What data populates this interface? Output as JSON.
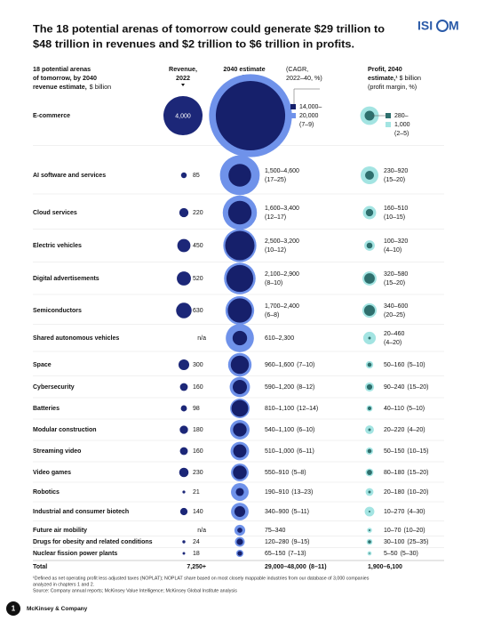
{
  "chart_data": {
    "type": "bubble",
    "title": [
      "The 18 potential arenas of tomorrow could generate $29 trillion to",
      "$48 trillion in revenues and $2 trillion to $6 trillion in profits."
    ],
    "label_header": [
      "18 potential arenas",
      "of tomorrow, by 2040",
      "revenue estimate,"
    ],
    "label_unit": "$ billion",
    "categories": [
      "E-commerce",
      "AI software and services",
      "Cloud services",
      "Electric vehicles",
      "Digital advertisements",
      "Semiconductors",
      "Shared autonomous vehicles",
      "Space",
      "Cybersecurity",
      "Batteries",
      "Modular construction",
      "Streaming video",
      "Video games",
      "Robotics",
      "Industrial and consumer biotech",
      "Future air mobility",
      "Drugs for obesity and related conditions",
      "Nuclear fission power plants"
    ],
    "revenue_2022": {
      "header": [
        "Revenue,",
        "2022"
      ],
      "color": "#1c2778",
      "values": [
        4000,
        85,
        220,
        450,
        520,
        630,
        null,
        300,
        160,
        98,
        180,
        160,
        230,
        21,
        140,
        null,
        24,
        18
      ],
      "value_labels": [
        "4,000",
        "85",
        "220",
        "450",
        "520",
        "630",
        "n/a",
        "300",
        "160",
        "98",
        "180",
        "160",
        "230",
        "21",
        "140",
        "n/a",
        "24",
        "18"
      ]
    },
    "estimate_2040": {
      "header": "2040 estimate",
      "note": [
        "(CAGR,",
        "2022–40, %)"
      ],
      "color_low": "#16206b",
      "color_high": "#6f92ea",
      "low": [
        14000,
        1500,
        1600,
        2500,
        2100,
        1700,
        610,
        960,
        590,
        810,
        540,
        510,
        550,
        190,
        340,
        75,
        120,
        65
      ],
      "high": [
        20000,
        4600,
        3400,
        3200,
        2900,
        2400,
        2300,
        1600,
        1200,
        1100,
        1100,
        1000,
        910,
        910,
        900,
        340,
        280,
        150
      ],
      "labels": [
        null,
        "1,500–4,600",
        "1,600–3,400",
        "2,500–3,200",
        "2,100–2,900",
        "1,700–2,400",
        "610–2,300",
        "960–1,600",
        "590–1,200",
        "810–1,100",
        "540–1,100",
        "510–1,000",
        "550–910",
        "190–910",
        "340–900",
        "75–340",
        "120–280",
        "65–150"
      ],
      "cagr": [
        null,
        "(17–25)",
        "(12–17)",
        "(10–12)",
        "(8–10)",
        "(6–8)",
        null,
        "(7–10)",
        "(8–12)",
        "(12–14)",
        "(6–10)",
        "(6–11)",
        "(5–8)",
        "(13–23)",
        "(5–11)",
        null,
        "(9–15)",
        "(7–13)"
      ],
      "callout": {
        "low": "14,000–",
        "high": "20,000",
        "cagr": "(7–9)"
      }
    },
    "profit_2040": {
      "header": [
        "Profit, 2040",
        "estimate,¹"
      ],
      "unit": "$ billion",
      "note": "(profit margin, %)",
      "color_low": "#2e6f6d",
      "color_high": "#a3e4e2",
      "low": [
        280,
        230,
        160,
        100,
        320,
        340,
        20,
        50,
        90,
        40,
        20,
        50,
        80,
        20,
        10,
        10,
        30,
        5
      ],
      "high": [
        1000,
        920,
        510,
        320,
        580,
        600,
        460,
        160,
        240,
        110,
        220,
        150,
        180,
        180,
        270,
        70,
        100,
        50
      ],
      "labels": [
        null,
        "230–920",
        "160–510",
        "100–320",
        "320–580",
        "340–600",
        "20–460",
        "50–160",
        "90–240",
        "40–110",
        "20–220",
        "50–150",
        "80–180",
        "20–180",
        "10–270",
        "10–70",
        "30–100",
        "5–50"
      ],
      "margin": [
        null,
        "(15–20)",
        "(10–15)",
        "(4–10)",
        "(15–20)",
        "(20–25)",
        "(4–20)",
        "(5–10)",
        "(15–20)",
        "(5–10)",
        "(4–20)",
        "(10–15)",
        "(15–20)",
        "(10–20)",
        "(4–30)",
        "(10–20)",
        "(25–35)",
        "(5–30)"
      ],
      "callout": {
        "low": "280–",
        "high": "1,000",
        "margin": "(2–5)"
      }
    },
    "total": {
      "label": "Total",
      "revenue_2022": "7,250+",
      "estimate": "29,000–48,000",
      "cagr": "(8–11)",
      "profit": "1,900–6,100"
    }
  },
  "logo": {
    "left": "ISI",
    "right": "M"
  },
  "footnote": [
    "¹Defined as net operating profit less adjusted taxes (NOPLAT); NOPLAT share based on most closely mappable industries from our database of 3,000 companies",
    "analyzed in chapters 1 and 2."
  ],
  "source": "Source: Company annual reports; McKinsey Value Intelligence; McKinsey Global Institute analysis",
  "footer": {
    "page": "1",
    "brand": "McKinsey & Company"
  }
}
